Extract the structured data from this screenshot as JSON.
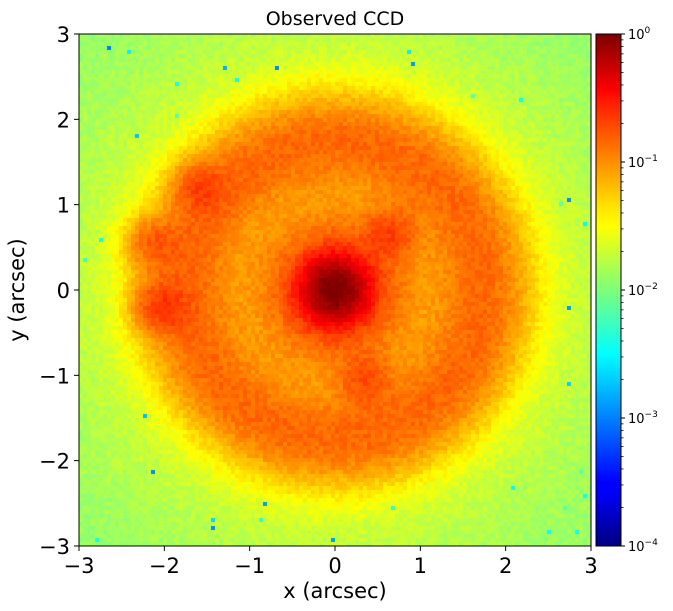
{
  "chart_data": {
    "type": "heatmap",
    "title": "Observed CCD",
    "xlabel": "x (arcsec)",
    "ylabel": "y (arcsec)",
    "xlim": [
      -3,
      3
    ],
    "ylim": [
      -3,
      3
    ],
    "x_ticks": [
      "−3",
      "−2",
      "−1",
      "0",
      "1",
      "2",
      "3"
    ],
    "y_ticks": [
      "−3",
      "−2",
      "−1",
      "0",
      "1",
      "2",
      "3"
    ],
    "x_tick_values": [
      -3,
      -2,
      -1,
      0,
      1,
      2,
      3
    ],
    "y_tick_values": [
      -3,
      -2,
      -1,
      0,
      1,
      2,
      3
    ],
    "colorbar": {
      "scale": "log",
      "colormap": "jet",
      "range": [
        0.0001,
        1
      ],
      "tick_values": [
        0.0001,
        0.001,
        0.01,
        0.1,
        1
      ],
      "tick_labels": [
        {
          "base": "10",
          "exp": "−4"
        },
        {
          "base": "10",
          "exp": "−3"
        },
        {
          "base": "10",
          "exp": "−2"
        },
        {
          "base": "10",
          "exp": "−1"
        },
        {
          "base": "10",
          "exp": "0"
        }
      ]
    },
    "features": {
      "central_core": {
        "x": 0.0,
        "y": 0.0,
        "peak": 0.9
      },
      "ring": {
        "center": [
          0.0,
          0.0
        ],
        "radius": 1.75,
        "peak": 0.12
      },
      "background_level": 0.01,
      "bright_knots": [
        {
          "x": -2.05,
          "y": -0.2,
          "value": 0.18
        },
        {
          "x": -2.15,
          "y": 0.55,
          "value": 0.13
        },
        {
          "x": 0.65,
          "y": 0.65,
          "value": 0.16
        },
        {
          "x": 0.35,
          "y": -1.05,
          "value": 0.14
        },
        {
          "x": -1.6,
          "y": 1.2,
          "value": 0.13
        }
      ]
    }
  }
}
